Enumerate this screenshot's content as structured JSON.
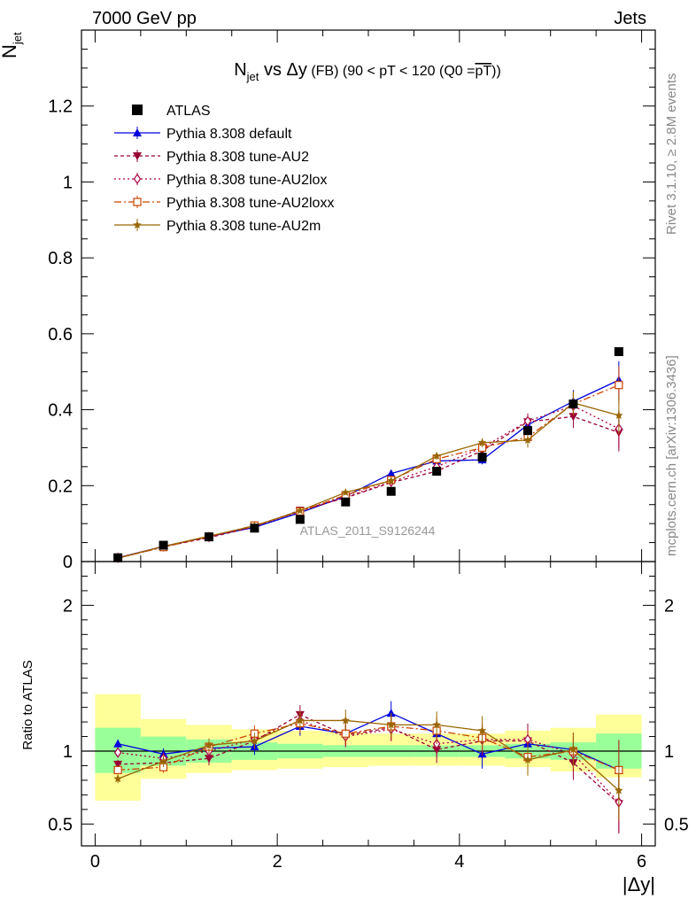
{
  "header": {
    "left": "7000 GeV pp",
    "right": "Jets"
  },
  "side": {
    "rivet": "Rivet 3.1.10, ≥ 2.8M events",
    "mcplots": "mcplots.cern.ch [arXiv:1306.3436]"
  },
  "chart_data": [
    {
      "type": "scatter",
      "title": "N_jet vs Δy (FB) (90 < pT < 120 (Q0 = pT))",
      "title_parts": {
        "main": "N",
        "sub": "jet",
        "rest": " vs Δy",
        "small": " (FB) (90 < pT < 120 (Q0 =",
        "over": "pT",
        "close": "))"
      },
      "ylabel": "N_jet (overlined)",
      "ylabel_parts": {
        "main": "N",
        "sub": "jet"
      },
      "xlim": [
        -0.15,
        6.15
      ],
      "ylim": [
        0,
        1.4
      ],
      "yticks": [
        0,
        0.2,
        0.4,
        0.6,
        0.8,
        1,
        1.2
      ],
      "ytick_labels": [
        "0",
        "0.2",
        "0.4",
        "0.6",
        "0.8",
        "1",
        "1.2"
      ],
      "watermark": "ATLAS_2011_S9126244",
      "legend_position": "top-left",
      "x": [
        0.25,
        0.75,
        1.25,
        1.75,
        2.25,
        2.75,
        3.25,
        3.75,
        4.25,
        4.75,
        5.25,
        5.75
      ],
      "data": {
        "name": "ATLAS",
        "values": [
          0.01,
          0.043,
          0.065,
          0.088,
          0.111,
          0.157,
          0.185,
          0.238,
          0.275,
          0.345,
          0.415,
          0.553
        ]
      },
      "series": [
        {
          "name": "Pythia 8.308 default",
          "color": "#0000dd",
          "marker": "triangle-up",
          "dash": "",
          "values": [
            0.01,
            0.04,
            0.066,
            0.09,
            0.129,
            0.172,
            0.232,
            0.265,
            0.268,
            0.36,
            0.422,
            0.478
          ],
          "errors": [
            0.001,
            0.002,
            0.003,
            0.004,
            0.005,
            0.006,
            0.007,
            0.01,
            0.012,
            0.02,
            0.03,
            0.05
          ]
        },
        {
          "name": "Pythia 8.308 tune-AU2",
          "color": "#990033",
          "marker": "triangle-down",
          "dash": "4,3",
          "values": [
            0.009,
            0.039,
            0.063,
            0.092,
            0.135,
            0.168,
            0.208,
            0.238,
            0.292,
            0.368,
            0.382,
            0.34
          ],
          "errors": [
            0.001,
            0.002,
            0.003,
            0.004,
            0.005,
            0.006,
            0.007,
            0.01,
            0.012,
            0.02,
            0.03,
            0.05
          ]
        },
        {
          "name": "Pythia 8.308 tune-AU2lox",
          "color": "#aa0044",
          "marker": "diamond-open",
          "dash": "2,3",
          "values": [
            0.01,
            0.04,
            0.065,
            0.093,
            0.132,
            0.17,
            0.21,
            0.25,
            0.3,
            0.37,
            0.41,
            0.35
          ],
          "errors": [
            0.001,
            0.002,
            0.003,
            0.004,
            0.005,
            0.006,
            0.007,
            0.01,
            0.012,
            0.02,
            0.03,
            0.05
          ]
        },
        {
          "name": "Pythia 8.308 tune-AU2loxx",
          "color": "#cc4400",
          "marker": "square-open",
          "dash": "8,3,2,3",
          "values": [
            0.009,
            0.038,
            0.066,
            0.095,
            0.132,
            0.175,
            0.215,
            0.27,
            0.3,
            0.328,
            0.415,
            0.465
          ],
          "errors": [
            0.001,
            0.002,
            0.003,
            0.004,
            0.005,
            0.006,
            0.007,
            0.01,
            0.012,
            0.02,
            0.03,
            0.05
          ]
        },
        {
          "name": "Pythia 8.308 tune-AU2m",
          "color": "#996600",
          "marker": "star",
          "dash": "",
          "values": [
            0.009,
            0.04,
            0.067,
            0.094,
            0.134,
            0.182,
            0.213,
            0.278,
            0.313,
            0.32,
            0.418,
            0.385
          ],
          "errors": [
            0.001,
            0.002,
            0.003,
            0.004,
            0.005,
            0.006,
            0.007,
            0.01,
            0.012,
            0.02,
            0.03,
            0.05
          ]
        }
      ]
    },
    {
      "type": "line",
      "ylabel": "Ratio to ATLAS",
      "xlabel": "|Δy|",
      "xlim": [
        -0.15,
        6.15
      ],
      "ylim": [
        0.35,
        2.3
      ],
      "xticks": [
        0,
        2,
        4,
        6
      ],
      "xtick_labels": [
        "0",
        "2",
        "4",
        "6"
      ],
      "yticks": [
        0.5,
        1,
        2
      ],
      "ytick_labels": [
        "0.5",
        "1",
        "2"
      ],
      "bins": [
        [
          0,
          0.5
        ],
        [
          0.5,
          1.0
        ],
        [
          1.0,
          1.5
        ],
        [
          1.5,
          2.0
        ],
        [
          2.0,
          2.5
        ],
        [
          2.5,
          3.0
        ],
        [
          3.0,
          3.5
        ],
        [
          3.5,
          4.0
        ],
        [
          4.0,
          4.5
        ],
        [
          4.5,
          5.0
        ],
        [
          5.0,
          5.5
        ],
        [
          5.5,
          6.0
        ]
      ],
      "band_green": [
        [
          0.85,
          1.16
        ],
        [
          0.9,
          1.1
        ],
        [
          0.92,
          1.08
        ],
        [
          0.94,
          1.06
        ],
        [
          0.95,
          1.05
        ],
        [
          0.96,
          1.04
        ],
        [
          0.96,
          1.04
        ],
        [
          0.96,
          1.04
        ],
        [
          0.96,
          1.04
        ],
        [
          0.95,
          1.05
        ],
        [
          0.94,
          1.06
        ],
        [
          0.88,
          1.12
        ]
      ],
      "band_yellow": [
        [
          0.66,
          1.39
        ],
        [
          0.81,
          1.22
        ],
        [
          0.85,
          1.18
        ],
        [
          0.87,
          1.15
        ],
        [
          0.88,
          1.14
        ],
        [
          0.89,
          1.13
        ],
        [
          0.9,
          1.12
        ],
        [
          0.9,
          1.12
        ],
        [
          0.9,
          1.12
        ],
        [
          0.89,
          1.14
        ],
        [
          0.86,
          1.16
        ],
        [
          0.82,
          1.25
        ]
      ],
      "x": [
        0.25,
        0.75,
        1.25,
        1.75,
        2.25,
        2.75,
        3.25,
        3.75,
        4.25,
        4.75,
        5.25,
        5.75
      ],
      "series": [
        {
          "name": "Pythia 8.308 default",
          "values": [
            1.05,
            0.98,
            1.02,
            1.03,
            1.17,
            1.12,
            1.26,
            1.12,
            0.98,
            1.05,
            1.01,
            0.87
          ]
        },
        {
          "name": "Pythia 8.308 tune-AU2",
          "values": [
            0.91,
            0.92,
            0.95,
            1.07,
            1.25,
            1.11,
            1.16,
            1.01,
            1.07,
            1.07,
            0.92,
            0.64
          ]
        },
        {
          "name": "Pythia 8.308 tune-AU2lox",
          "values": [
            0.99,
            0.95,
            1.0,
            1.08,
            1.21,
            1.1,
            1.15,
            1.05,
            1.08,
            1.08,
            0.98,
            0.65
          ]
        },
        {
          "name": "Pythia 8.308 tune-AU2loxx",
          "values": [
            0.87,
            0.89,
            1.03,
            1.12,
            1.19,
            1.12,
            1.17,
            1.14,
            1.09,
            0.96,
            1.0,
            0.87
          ]
        },
        {
          "name": "Pythia 8.308 tune-AU2m",
          "values": [
            0.81,
            0.93,
            1.04,
            1.07,
            1.21,
            1.21,
            1.18,
            1.18,
            1.14,
            0.94,
            1.01,
            0.73
          ]
        }
      ]
    }
  ]
}
